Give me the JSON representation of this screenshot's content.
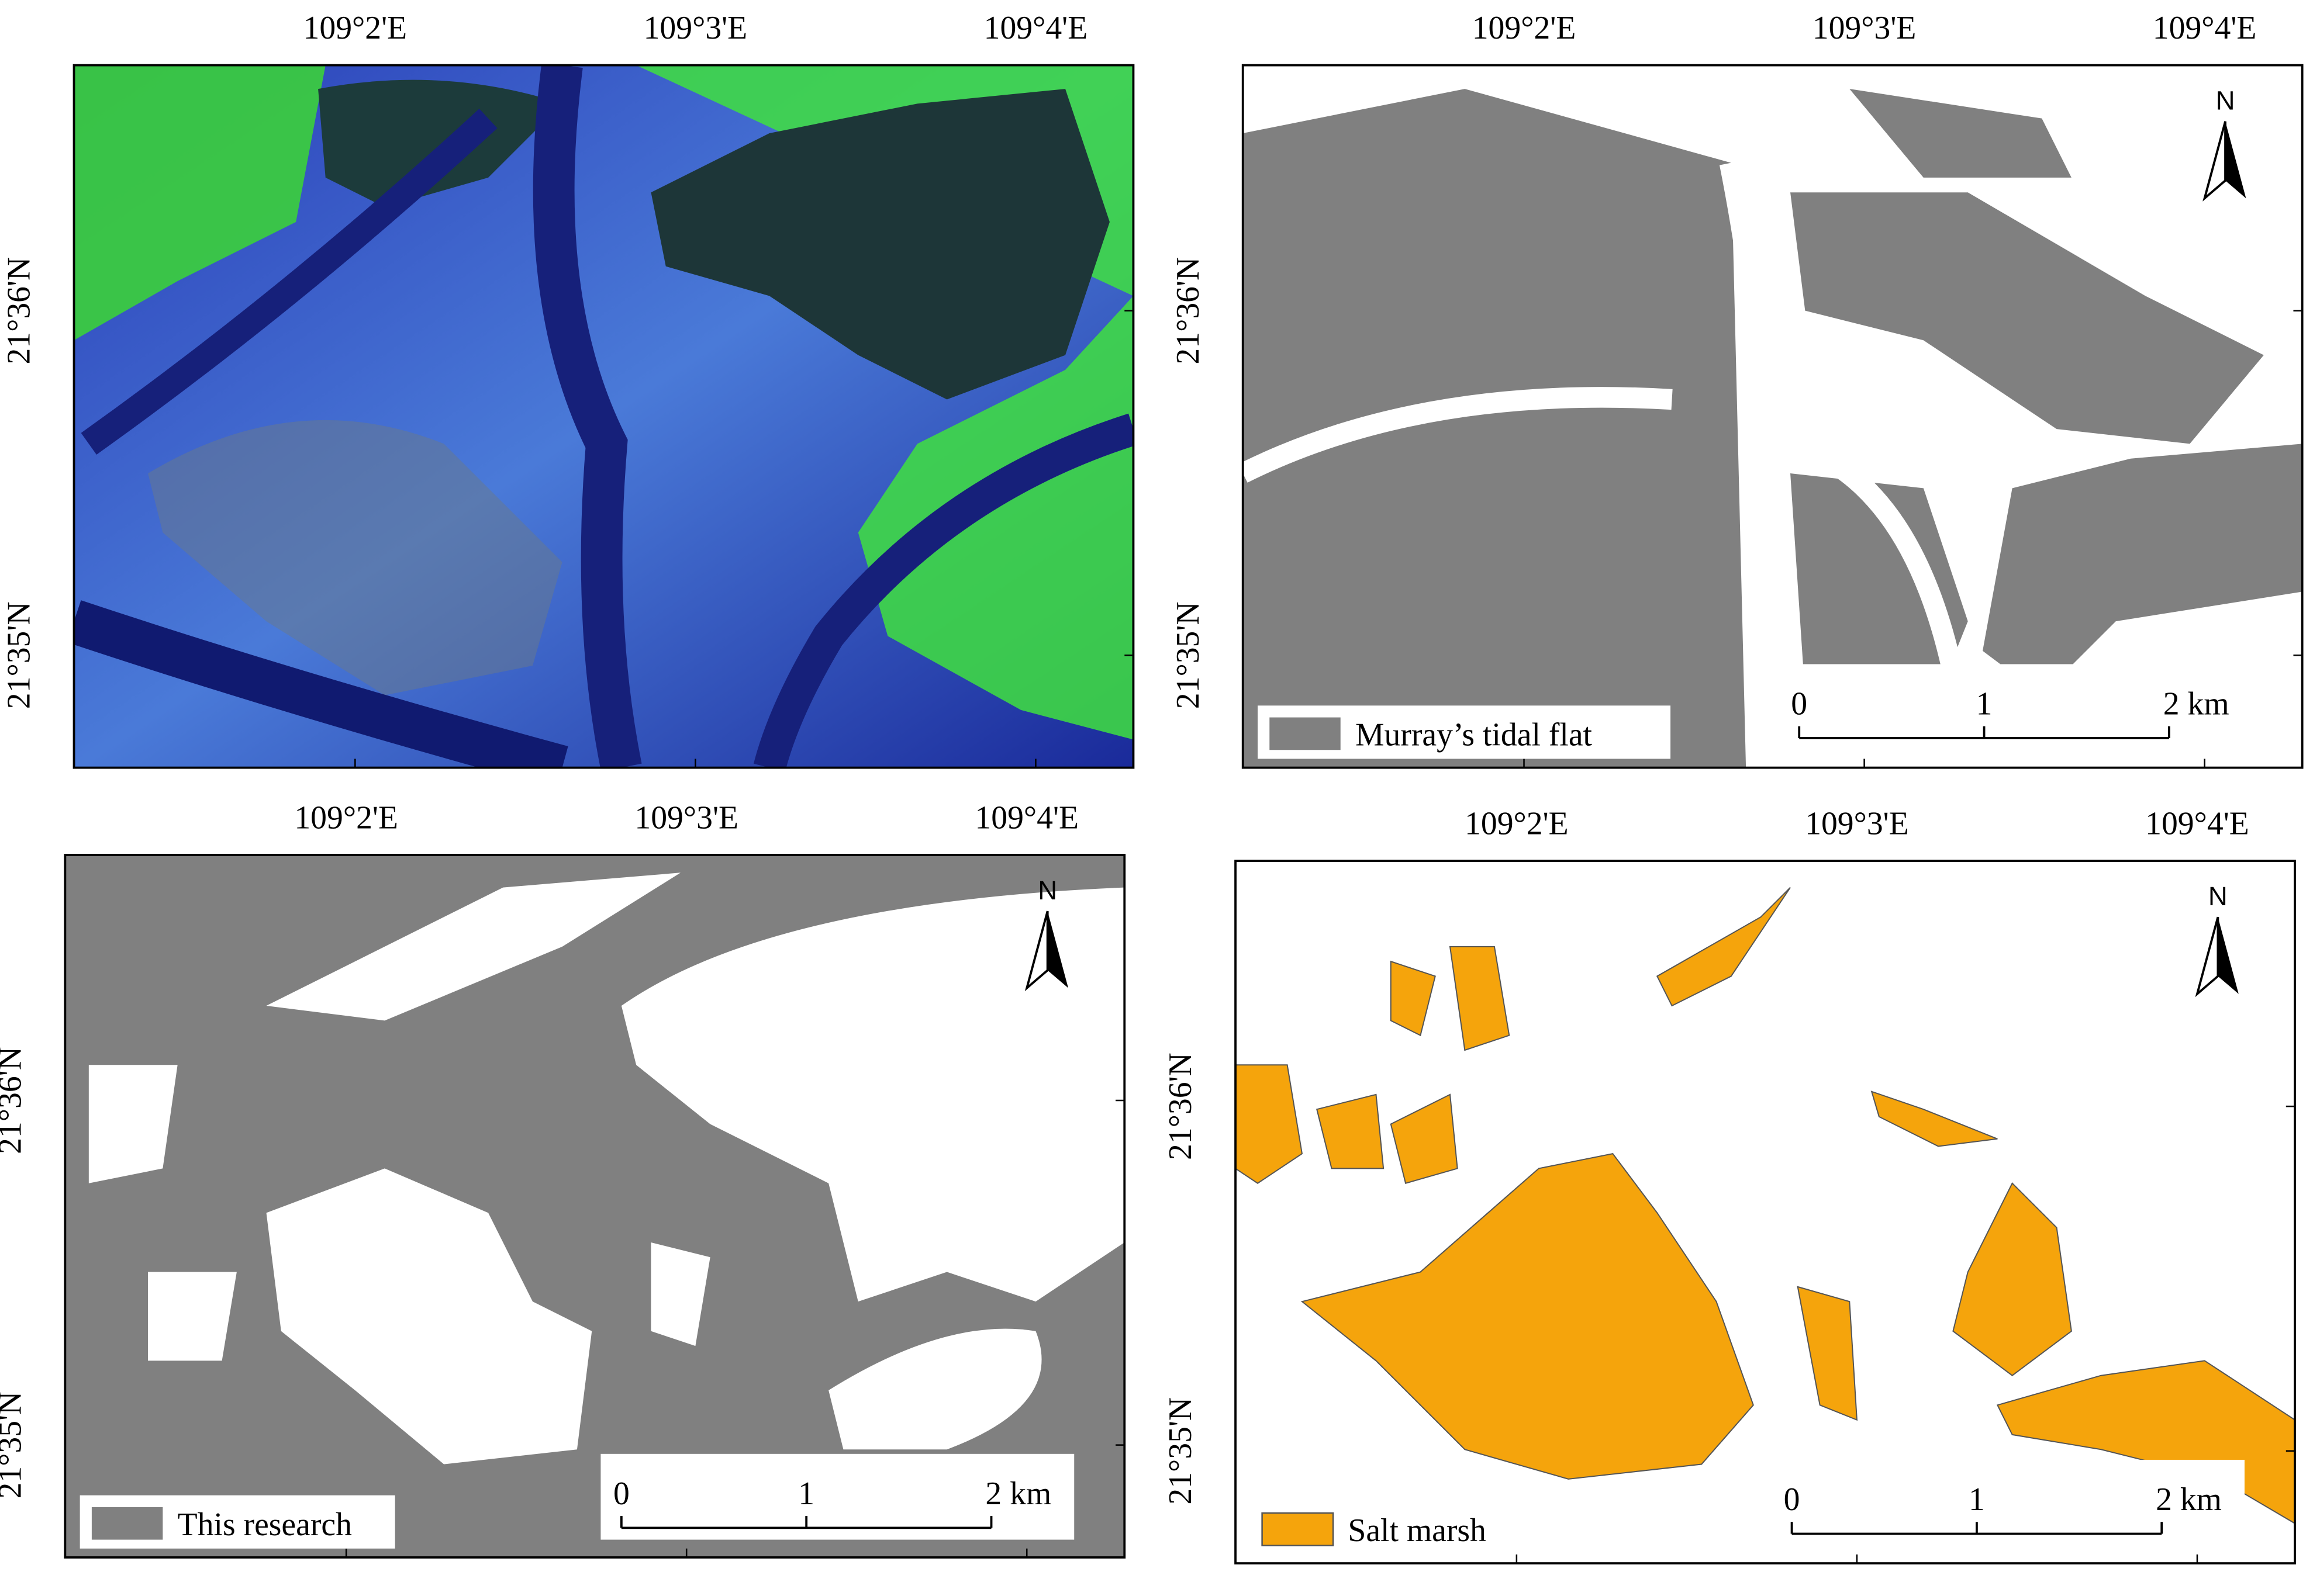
{
  "panels": [
    {
      "lon_labels": [
        "109°2'E",
        "109°3'E",
        "109°4'E"
      ],
      "lat_labels": [
        "21°36'N",
        "21°35'N"
      ]
    },
    {
      "lon_labels": [
        "109°2'E",
        "109°3'E",
        "109°4'E"
      ],
      "lat_labels": [
        "21°36'N",
        "21°35'N"
      ],
      "north": "N",
      "legend": "Murray’s tidal flat",
      "scale": [
        "0",
        "1",
        "2 km"
      ]
    },
    {
      "lon_labels": [
        "109°2'E",
        "109°3'E",
        "109°4'E"
      ],
      "lat_labels": [
        "21°36'N",
        "21°35'N"
      ],
      "north": "N",
      "legend": "This research",
      "scale": [
        "0",
        "1",
        "2 km"
      ]
    },
    {
      "lon_labels": [
        "109°2'E",
        "109°3'E",
        "109°4'E"
      ],
      "lat_labels": [
        "21°36'N",
        "21°35'N"
      ],
      "north": "N",
      "legend": "Salt marsh",
      "scale": [
        "0",
        "1",
        "2 km"
      ]
    }
  ]
}
